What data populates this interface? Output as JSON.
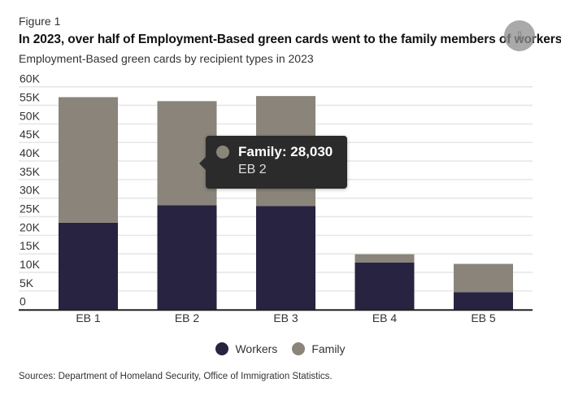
{
  "figure_label": "Figure 1",
  "title": "In 2023, over half of Employment-Based green cards went to the family members of workers",
  "subtitle": "Employment-Based green cards by recipient types in 2023",
  "share_icon": "share-icon",
  "colors": {
    "workers": "#272340",
    "family": "#8a847a",
    "grid": "#e6e6e6",
    "axis": "#222222"
  },
  "tooltip": {
    "value_label": "Family: 28,030",
    "category": "EB 2"
  },
  "legend": [
    {
      "label": "Workers",
      "color": "#272340"
    },
    {
      "label": "Family",
      "color": "#8a847a"
    }
  ],
  "source": "Sources: Department of Homeland Security, Office of Immigration Statistics.",
  "chart_data": {
    "type": "bar",
    "stacked": true,
    "title": "In 2023, over half of Employment-Based green cards went to the family members of workers",
    "subtitle": "Employment-Based green cards by recipient types in 2023",
    "xlabel": "",
    "ylabel": "",
    "categories": [
      "EB 1",
      "EB 2",
      "EB 3",
      "EB 4",
      "EB 5"
    ],
    "series": [
      {
        "name": "Workers",
        "values": [
          23400,
          28100,
          27900,
          12700,
          4700
        ]
      },
      {
        "name": "Family",
        "values": [
          33800,
          28030,
          29600,
          2200,
          7600
        ]
      }
    ],
    "ylim": [
      0,
      60000
    ],
    "yticks": [
      0,
      5000,
      10000,
      15000,
      20000,
      25000,
      30000,
      35000,
      40000,
      45000,
      50000,
      55000,
      60000
    ],
    "ytick_labels": [
      "0",
      "5K",
      "10K",
      "15K",
      "20K",
      "25K",
      "30K",
      "35K",
      "40K",
      "45K",
      "50K",
      "55K",
      "60K"
    ],
    "grid": true,
    "legend_position": "bottom-center"
  }
}
